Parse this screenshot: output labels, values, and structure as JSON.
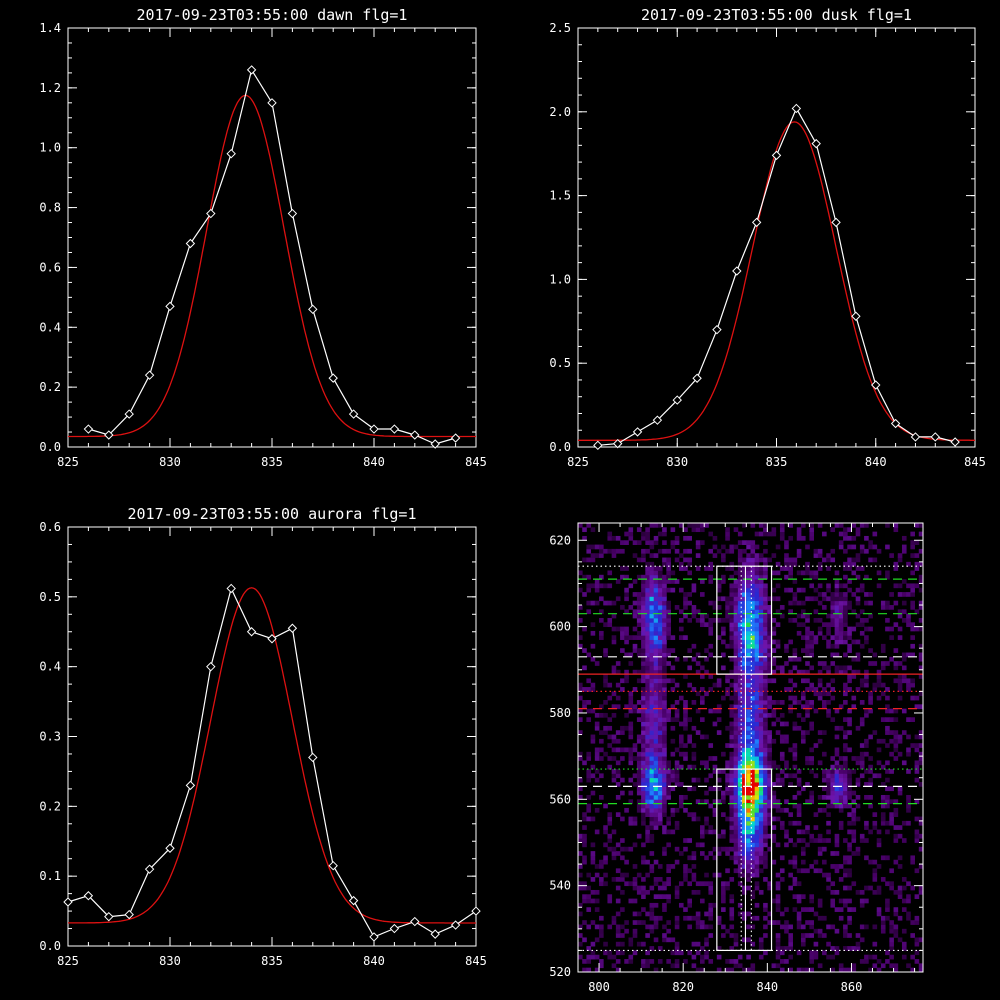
{
  "colors": {
    "background": "#000000",
    "axes": "#ffffff",
    "data": "#ffffff",
    "fit": "#dd1111",
    "green_lines": "#22dd22",
    "red_lines": "#ee2222"
  },
  "chart_data": [
    {
      "type": "line",
      "title": "2017-09-23T03:55:00 dawn flg=1",
      "xlim": [
        825,
        845
      ],
      "ylim": [
        0,
        1.4
      ],
      "xticks": [
        "825",
        "830",
        "835",
        "840",
        "845"
      ],
      "yticks": [
        "0.0",
        "0.2",
        "0.4",
        "0.6",
        "0.8",
        "1.0",
        "1.2",
        "1.4"
      ],
      "x": [
        826,
        827,
        828,
        829,
        830,
        831,
        832,
        833,
        834,
        835,
        836,
        837,
        838,
        839,
        840,
        841,
        842,
        843,
        844
      ],
      "series": [
        {
          "values": [
            0.06,
            0.04,
            0.11,
            0.24,
            0.47,
            0.68,
            0.78,
            0.98,
            1.26,
            1.15,
            0.78,
            0.46,
            0.23,
            0.11,
            0.06,
            0.06,
            0.04,
            0.01,
            0.03
          ]
        }
      ],
      "fit": {
        "amplitude": 1.14,
        "center": 833.7,
        "sigma": 1.9,
        "offset": 0.035
      }
    },
    {
      "type": "line",
      "title": "2017-09-23T03:55:00 dusk flg=1",
      "xlim": [
        825,
        845
      ],
      "ylim": [
        0,
        2.5
      ],
      "xticks": [
        "825",
        "830",
        "835",
        "840",
        "845"
      ],
      "yticks": [
        "0.0",
        "0.5",
        "1.0",
        "1.5",
        "2.0",
        "2.5"
      ],
      "x": [
        826,
        827,
        828,
        829,
        830,
        831,
        832,
        833,
        834,
        835,
        836,
        837,
        838,
        839,
        840,
        841,
        842,
        843,
        844
      ],
      "series": [
        {
          "values": [
            0.01,
            0.02,
            0.09,
            0.16,
            0.28,
            0.41,
            0.7,
            1.05,
            1.34,
            1.74,
            2.02,
            1.81,
            1.34,
            0.78,
            0.37,
            0.14,
            0.06,
            0.06,
            0.03
          ]
        }
      ],
      "fit": {
        "amplitude": 1.9,
        "center": 835.9,
        "sigma": 2.1,
        "offset": 0.04
      }
    },
    {
      "type": "line",
      "title": "2017-09-23T03:55:00 aurora flg=1",
      "xlim": [
        825,
        845
      ],
      "ylim": [
        0,
        0.6
      ],
      "xticks": [
        "825",
        "830",
        "835",
        "840",
        "845"
      ],
      "yticks": [
        "0.0",
        "0.1",
        "0.2",
        "0.3",
        "0.4",
        "0.5",
        "0.6"
      ],
      "x": [
        825,
        826,
        827,
        828,
        829,
        830,
        831,
        832,
        833,
        834,
        835,
        836,
        837,
        838,
        839,
        840,
        841,
        842,
        843,
        844,
        845
      ],
      "series": [
        {
          "values": [
            0.063,
            0.072,
            0.042,
            0.045,
            0.11,
            0.14,
            0.23,
            0.4,
            0.512,
            0.45,
            0.44,
            0.455,
            0.27,
            0.115,
            0.065,
            0.013,
            0.025,
            0.035,
            0.017,
            0.03,
            0.05
          ]
        }
      ],
      "fit": {
        "amplitude": 0.48,
        "center": 834.0,
        "sigma": 2.0,
        "offset": 0.033
      }
    },
    {
      "type": "heatmap",
      "title": "",
      "xlim": [
        795,
        877
      ],
      "ylim": [
        520,
        624
      ],
      "xticks": [
        "800",
        "820",
        "840",
        "860"
      ],
      "yticks": [
        "520",
        "540",
        "560",
        "580",
        "600",
        "620"
      ],
      "colorscale": "rainbow",
      "hot_spots": [
        {
          "x": 813,
          "y": 602,
          "sx": 1.8,
          "sy": 6,
          "v": 0.45
        },
        {
          "x": 813,
          "y": 563,
          "sx": 1.8,
          "sy": 4,
          "v": 0.5
        },
        {
          "x": 813,
          "y": 578,
          "sx": 2,
          "sy": 8,
          "v": 0.22
        },
        {
          "x": 836,
          "y": 600,
          "sx": 2.2,
          "sy": 8,
          "v": 0.55
        },
        {
          "x": 836,
          "y": 563,
          "sx": 2.2,
          "sy": 5,
          "v": 1.0
        },
        {
          "x": 836,
          "y": 578,
          "sx": 2.2,
          "sy": 8,
          "v": 0.3
        },
        {
          "x": 836,
          "y": 552,
          "sx": 2,
          "sy": 5,
          "v": 0.4
        },
        {
          "x": 857,
          "y": 563,
          "sx": 1.5,
          "sy": 3,
          "v": 0.28
        },
        {
          "x": 857,
          "y": 602,
          "sx": 1.5,
          "sy": 5,
          "v": 0.14
        }
      ],
      "boxes": [
        {
          "x0": 828,
          "x1": 841,
          "y0": 589,
          "y1": 614
        },
        {
          "x0": 828,
          "x1": 841,
          "y0": 525,
          "y1": 567
        }
      ],
      "vertical_lines": [
        {
          "x": 833.8,
          "style": "dotted"
        },
        {
          "x": 834.8,
          "style": "solid"
        },
        {
          "x": 836.2,
          "style": "dotted"
        }
      ],
      "horizontal_lines": [
        {
          "y": 614,
          "color": "white",
          "style": "dotted"
        },
        {
          "y": 611,
          "color": "green",
          "style": "dashed"
        },
        {
          "y": 603,
          "color": "green",
          "style": "dashed"
        },
        {
          "y": 593,
          "color": "white",
          "style": "dashed"
        },
        {
          "y": 589,
          "color": "red",
          "style": "solid"
        },
        {
          "y": 585,
          "color": "red",
          "style": "dotted"
        },
        {
          "y": 581,
          "color": "red",
          "style": "dashed"
        },
        {
          "y": 567,
          "color": "green",
          "style": "dotted"
        },
        {
          "y": 563,
          "color": "white",
          "style": "dashed"
        },
        {
          "y": 559,
          "color": "green",
          "style": "dashed"
        },
        {
          "y": 525,
          "color": "white",
          "style": "dotted"
        }
      ]
    }
  ]
}
